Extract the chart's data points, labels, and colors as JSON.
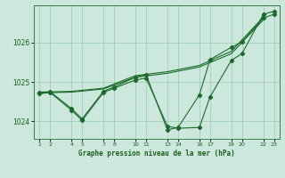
{
  "bg_color": "#cce8dc",
  "grid_color": "#99ccb3",
  "line_color": "#1a6b2a",
  "xlim": [
    0.5,
    23.5
  ],
  "ylim": [
    1023.55,
    1026.95
  ],
  "yticks": [
    1024,
    1025,
    1026
  ],
  "ytick_labels": [
    "1024",
    "1025",
    "1026"
  ],
  "xtick_positions": [
    1,
    2,
    4,
    5,
    7,
    8,
    10,
    11,
    13,
    14,
    16,
    17,
    19,
    20,
    22,
    23
  ],
  "xtick_labels": [
    "1",
    "2",
    "4",
    "5",
    "7",
    "8",
    "10",
    "11",
    "13",
    "14",
    "16",
    "17",
    "19",
    "20",
    "22",
    "23"
  ],
  "xlabel": "Graphe pression niveau de la mer (hPa)",
  "smooth_line1_x": [
    1,
    4,
    7,
    10,
    13,
    16,
    19,
    22
  ],
  "smooth_line1_y": [
    1024.72,
    1024.74,
    1024.82,
    1025.12,
    1025.22,
    1025.38,
    1025.72,
    1026.58
  ],
  "smooth_line2_x": [
    1,
    4,
    7,
    10,
    13,
    16,
    19,
    22
  ],
  "smooth_line2_y": [
    1024.74,
    1024.76,
    1024.84,
    1025.16,
    1025.26,
    1025.42,
    1025.78,
    1026.65
  ],
  "main_line_x": [
    1,
    2,
    4,
    5,
    7,
    8,
    10,
    11,
    13,
    14,
    16,
    17,
    19,
    20,
    22,
    23
  ],
  "main_line_y": [
    1024.7,
    1024.73,
    1024.28,
    1024.02,
    1024.73,
    1024.84,
    1025.05,
    1025.1,
    1023.87,
    1023.82,
    1023.84,
    1024.62,
    1025.55,
    1025.72,
    1026.72,
    1026.8
  ],
  "second_line_x": [
    1,
    2,
    4,
    5,
    7,
    8,
    10,
    11,
    13,
    14,
    16,
    17,
    19,
    20,
    22,
    23
  ],
  "second_line_y": [
    1024.72,
    1024.75,
    1024.32,
    1024.06,
    1024.76,
    1024.87,
    1025.12,
    1025.18,
    1023.78,
    1023.84,
    1024.67,
    1025.57,
    1025.88,
    1026.02,
    1026.63,
    1026.72
  ]
}
